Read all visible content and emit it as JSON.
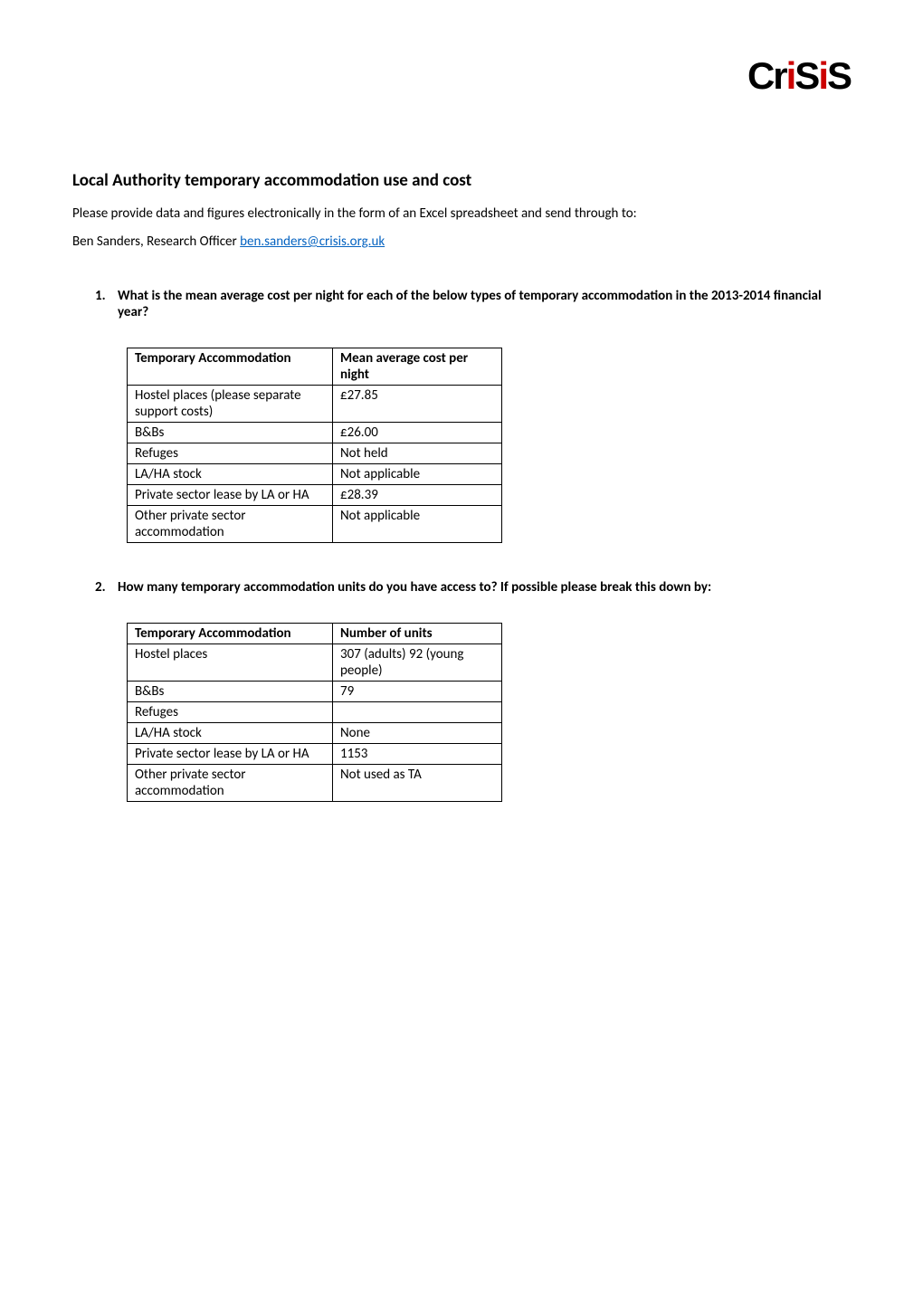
{
  "logo": {
    "text_parts": [
      "Cr",
      "i",
      "S",
      "i",
      "S"
    ]
  },
  "title": "Local Authority temporary accommodation use and cost",
  "intro_text": "Please provide data and figures electronically in the form of an Excel spreadsheet and send through to:",
  "contact": {
    "name": "Ben Sanders, Research Officer",
    "email": "ben.sanders@crisis.org.uk"
  },
  "questions": [
    {
      "number": "1.",
      "text": "What is the mean average cost per night for each of the below types of temporary accommodation in the 2013-2014 financial year?",
      "table": {
        "headers": [
          "Temporary Accommodation",
          "Mean average cost per night"
        ],
        "rows": [
          [
            "Hostel places (please separate support costs)",
            "£27.85"
          ],
          [
            "B&Bs",
            "£26.00"
          ],
          [
            "Refuges",
            "Not held"
          ],
          [
            "LA/HA stock",
            "Not applicable"
          ],
          [
            "Private sector lease by LA or HA",
            "£28.39"
          ],
          [
            "Other private sector accommodation",
            "Not applicable"
          ]
        ]
      }
    },
    {
      "number": "2.",
      "text": "How many temporary accommodation units do you have access to? If possible please break this down by:",
      "table": {
        "headers": [
          "Temporary Accommodation",
          "Number of units"
        ],
        "rows": [
          [
            "Hostel places",
            "307 (adults) 92 (young people)"
          ],
          [
            "B&Bs",
            "79"
          ],
          [
            "Refuges",
            ""
          ],
          [
            "LA/HA stock",
            "None"
          ],
          [
            "Private sector lease by LA or HA",
            "1153"
          ],
          [
            "Other private sector accommodation",
            "Not used as TA"
          ]
        ]
      }
    }
  ]
}
